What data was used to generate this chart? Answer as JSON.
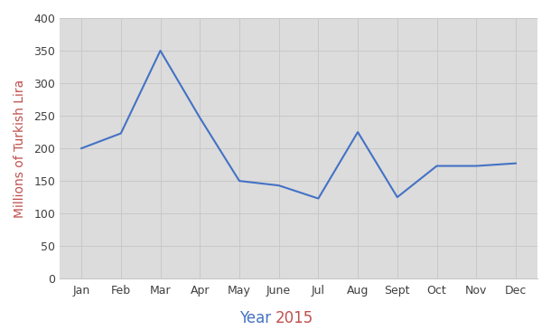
{
  "months": [
    "Jan",
    "Feb",
    "Mar",
    "Apr",
    "May",
    "June",
    "Jul",
    "Aug",
    "Sept",
    "Oct",
    "Nov",
    "Dec"
  ],
  "values": [
    200,
    223,
    350,
    247,
    150,
    143,
    123,
    225,
    125,
    173,
    173,
    177
  ],
  "line_color": "#4472C4",
  "line_width": 1.5,
  "ylabel": "Millions of Turkish Lira",
  "xlabel_part1": "Year ",
  "xlabel_part2": "2015",
  "xlabel_color1": "#4472C4",
  "xlabel_color2": "#C0504D",
  "ylim": [
    0,
    400
  ],
  "yticks": [
    0,
    50,
    100,
    150,
    200,
    250,
    300,
    350,
    400
  ],
  "grid_color": "#C8C8C8",
  "bg_color": "#FFFFFF",
  "plot_bg_color": "#DCDCDC",
  "ylabel_color": "#C0504D",
  "ylabel_fontsize": 10,
  "xlabel_fontsize": 12,
  "tick_fontsize": 9,
  "tick_color": "#404040"
}
